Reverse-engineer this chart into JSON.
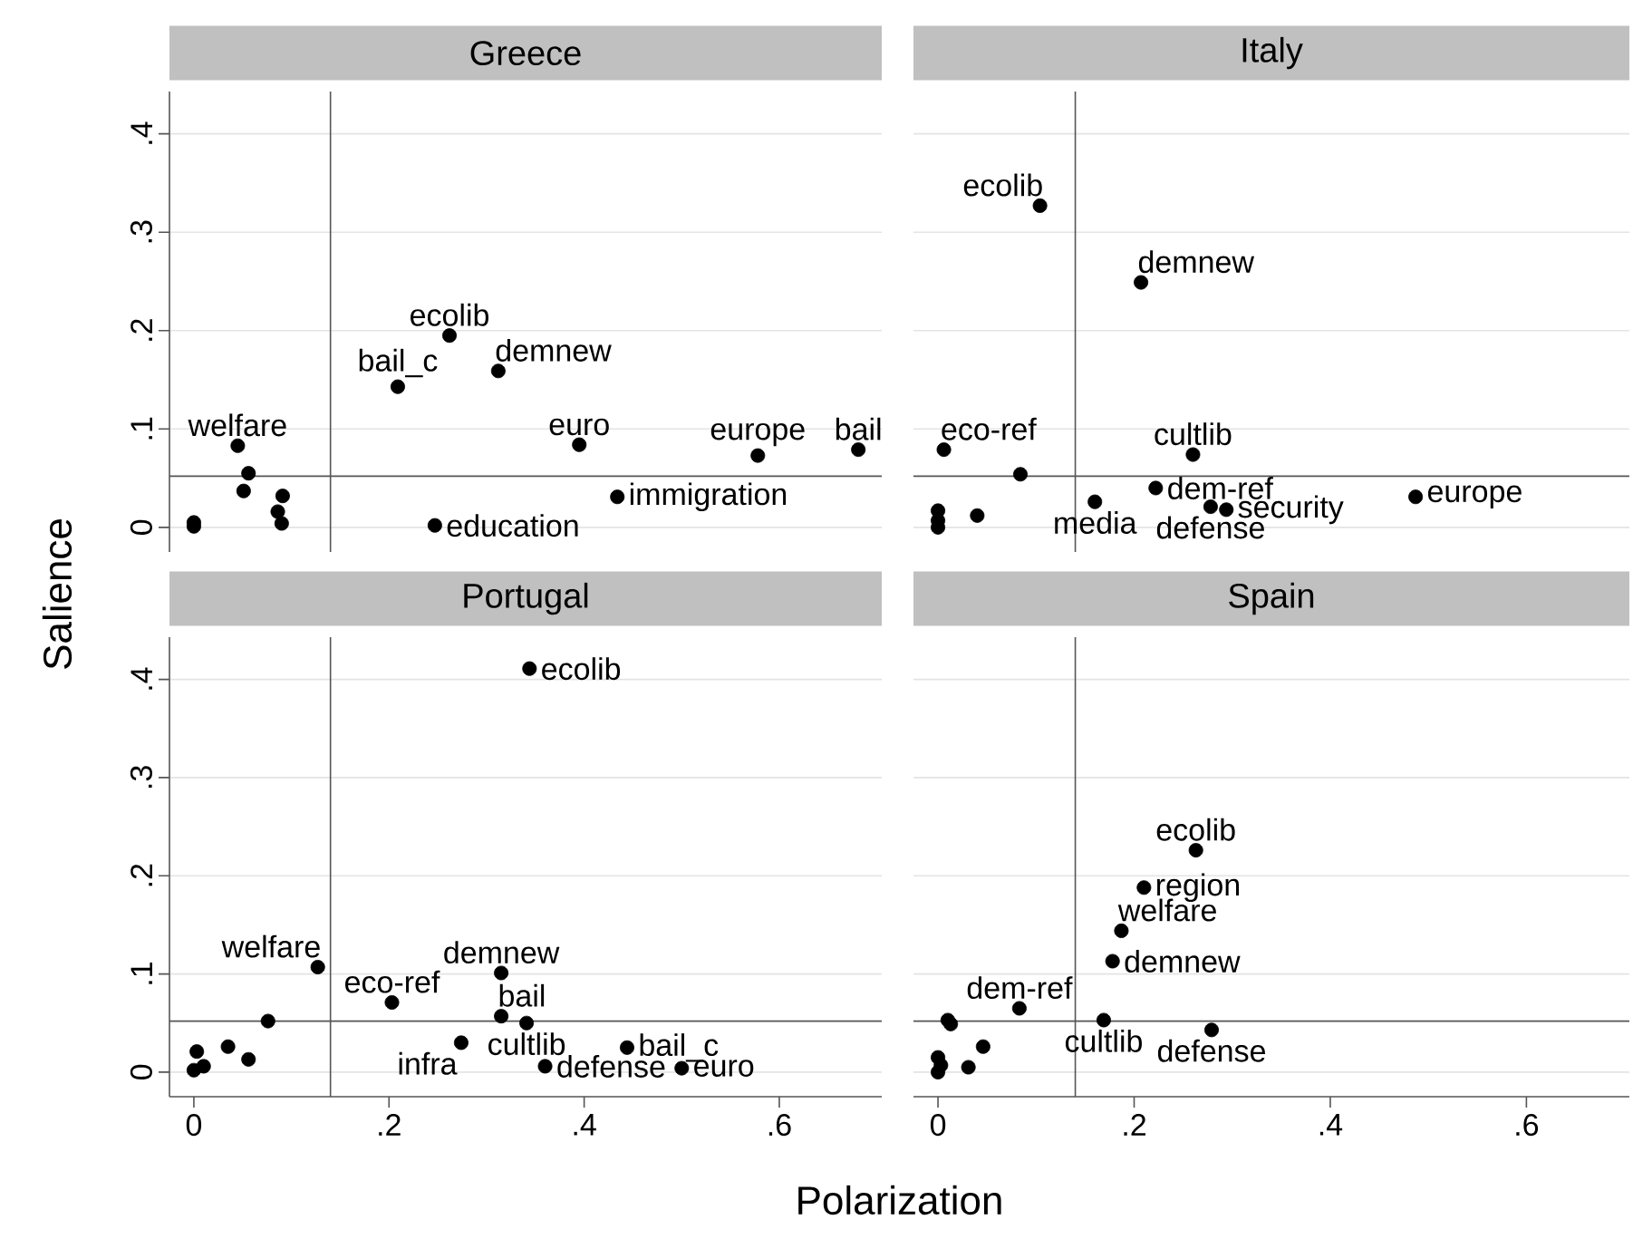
{
  "chart_data": [
    {
      "type": "scatter",
      "title": "Greece",
      "color": "#000000",
      "marker": "circle",
      "grid": "y",
      "tick_labels": "y",
      "x": [
        0.045,
        0.209,
        0.262,
        0.312,
        0.395,
        0.578,
        0.681,
        0.434,
        0.247,
        0.056,
        0.051,
        0.091,
        0.086,
        0.09,
        0.0,
        0.0
      ],
      "values": [
        0.083,
        0.143,
        0.195,
        0.159,
        0.084,
        0.073,
        0.079,
        0.031,
        0.002,
        0.055,
        0.037,
        0.032,
        0.016,
        0.004,
        0.005,
        0.001
      ],
      "annotations": [
        {
          "text": "welfare",
          "x": 0.045,
          "y": 0.083
        },
        {
          "text": "bail_c",
          "x": 0.209,
          "y": 0.143
        },
        {
          "text": "ecolib",
          "x": 0.262,
          "y": 0.195
        },
        {
          "text": "demnew",
          "x": 0.312,
          "y": 0.159
        },
        {
          "text": "euro",
          "x": 0.395,
          "y": 0.084
        },
        {
          "text": "europe",
          "x": 0.578,
          "y": 0.073
        },
        {
          "text": "bail",
          "x": 0.681,
          "y": 0.079
        },
        {
          "text": "immigration",
          "x": 0.434,
          "y": 0.031
        },
        {
          "text": "education",
          "x": 0.247,
          "y": 0.002
        }
      ],
      "ref_lines": [
        {
          "axis": "x",
          "value": 0.14,
          "color": "#555555"
        },
        {
          "axis": "y",
          "value": 0.052,
          "color": "#555555"
        }
      ],
      "xlim": [
        -0.025,
        0.705
      ],
      "ylim": [
        -0.025,
        0.443
      ],
      "yticks": [
        {
          "value": 0,
          "label": "0"
        },
        {
          "value": 0.1,
          "label": ".1"
        },
        {
          "value": 0.2,
          "label": ".2"
        },
        {
          "value": 0.3,
          "label": ".3"
        },
        {
          "value": 0.4,
          "label": ".4"
        }
      ]
    },
    {
      "type": "scatter",
      "title": "Italy",
      "color": "#000000",
      "marker": "circle",
      "grid": "y",
      "tick_labels": false,
      "x": [
        0.104,
        0.207,
        0.006,
        0.26,
        0.222,
        0.16,
        0.278,
        0.294,
        0.487,
        0.084,
        0.04,
        0.0,
        0.0,
        0.0
      ],
      "values": [
        0.327,
        0.249,
        0.079,
        0.074,
        0.04,
        0.026,
        0.021,
        0.018,
        0.031,
        0.054,
        0.012,
        0.017,
        0.007,
        0.0
      ],
      "annotations": [
        {
          "text": "ecolib",
          "x": 0.104,
          "y": 0.327
        },
        {
          "text": "demnew",
          "x": 0.207,
          "y": 0.249
        },
        {
          "text": "eco-ref",
          "x": 0.006,
          "y": 0.079
        },
        {
          "text": "cultlib",
          "x": 0.26,
          "y": 0.074
        },
        {
          "text": "dem-ref",
          "x": 0.222,
          "y": 0.04
        },
        {
          "text": "media",
          "x": 0.16,
          "y": 0.026
        },
        {
          "text": "defense",
          "x": 0.278,
          "y": 0.021
        },
        {
          "text": "security",
          "x": 0.294,
          "y": 0.018
        },
        {
          "text": "europe",
          "x": 0.487,
          "y": 0.031
        }
      ],
      "ref_lines": [
        {
          "axis": "x",
          "value": 0.14,
          "color": "#555555"
        },
        {
          "axis": "y",
          "value": 0.052,
          "color": "#555555"
        }
      ],
      "xlim": [
        -0.025,
        0.705
      ],
      "ylim": [
        -0.025,
        0.443
      ],
      "yticks": [
        0,
        0.1,
        0.2,
        0.3,
        0.4
      ]
    },
    {
      "type": "scatter",
      "title": "Portugal",
      "xlabel": "Polarization",
      "ylabel": "Salience",
      "color": "#000000",
      "marker": "circle",
      "grid": "y",
      "x": [
        0.344,
        0.127,
        0.203,
        0.315,
        0.315,
        0.341,
        0.274,
        0.36,
        0.444,
        0.5,
        0.076,
        0.003,
        0.035,
        0.056,
        0.0,
        0.01
      ],
      "values": [
        0.411,
        0.107,
        0.071,
        0.101,
        0.057,
        0.05,
        0.03,
        0.006,
        0.025,
        0.004,
        0.052,
        0.021,
        0.026,
        0.013,
        0.002,
        0.006
      ],
      "annotations": [
        {
          "text": "ecolib",
          "x": 0.344,
          "y": 0.411
        },
        {
          "text": "welfare",
          "x": 0.127,
          "y": 0.107
        },
        {
          "text": "eco-ref",
          "x": 0.203,
          "y": 0.071
        },
        {
          "text": "demnew",
          "x": 0.315,
          "y": 0.101
        },
        {
          "text": "bail",
          "x": 0.315,
          "y": 0.057
        },
        {
          "text": "cultlib",
          "x": 0.341,
          "y": 0.05
        },
        {
          "text": "infra",
          "x": 0.274,
          "y": 0.03
        },
        {
          "text": "defense",
          "x": 0.36,
          "y": 0.006
        },
        {
          "text": "bail_c",
          "x": 0.444,
          "y": 0.025
        },
        {
          "text": "euro",
          "x": 0.5,
          "y": 0.004
        }
      ],
      "ref_lines": [
        {
          "axis": "x",
          "value": 0.14,
          "color": "#555555"
        },
        {
          "axis": "y",
          "value": 0.052,
          "color": "#555555"
        }
      ],
      "xlim": [
        -0.025,
        0.705
      ],
      "ylim": [
        -0.025,
        0.443
      ],
      "xticks": [
        {
          "value": 0,
          "label": "0"
        },
        {
          "value": 0.2,
          "label": ".2"
        },
        {
          "value": 0.4,
          "label": ".4"
        },
        {
          "value": 0.6,
          "label": ".6"
        }
      ],
      "yticks": [
        {
          "value": 0,
          "label": "0"
        },
        {
          "value": 0.1,
          "label": ".1"
        },
        {
          "value": 0.2,
          "label": ".2"
        },
        {
          "value": 0.3,
          "label": ".3"
        },
        {
          "value": 0.4,
          "label": ".4"
        }
      ]
    },
    {
      "type": "scatter",
      "title": "Spain",
      "color": "#000000",
      "marker": "circle",
      "grid": "y",
      "tick_labels": "x",
      "x": [
        0.263,
        0.21,
        0.187,
        0.178,
        0.083,
        0.169,
        0.279,
        0.01,
        0.013,
        0.046,
        0.031,
        0.0,
        0.003,
        0.0
      ],
      "values": [
        0.226,
        0.188,
        0.144,
        0.113,
        0.065,
        0.053,
        0.043,
        0.053,
        0.049,
        0.026,
        0.005,
        0.015,
        0.007,
        0.0
      ],
      "annotations": [
        {
          "text": "ecolib",
          "x": 0.263,
          "y": 0.226
        },
        {
          "text": "region",
          "x": 0.21,
          "y": 0.188
        },
        {
          "text": "welfare",
          "x": 0.187,
          "y": 0.144
        },
        {
          "text": "demnew",
          "x": 0.178,
          "y": 0.113
        },
        {
          "text": "dem-ref",
          "x": 0.083,
          "y": 0.065
        },
        {
          "text": "cultlib",
          "x": 0.169,
          "y": 0.053
        },
        {
          "text": "defense",
          "x": 0.279,
          "y": 0.043
        }
      ],
      "ref_lines": [
        {
          "axis": "x",
          "value": 0.14,
          "color": "#555555"
        },
        {
          "axis": "y",
          "value": 0.052,
          "color": "#555555"
        }
      ],
      "xlim": [
        -0.025,
        0.705
      ],
      "ylim": [
        -0.025,
        0.443
      ],
      "xticks": [
        {
          "value": 0,
          "label": "0"
        },
        {
          "value": 0.2,
          "label": ".2"
        },
        {
          "value": 0.4,
          "label": ".4"
        },
        {
          "value": 0.6,
          "label": ".6"
        }
      ],
      "yticks": [
        0,
        0.1,
        0.2,
        0.3,
        0.4
      ]
    }
  ]
}
